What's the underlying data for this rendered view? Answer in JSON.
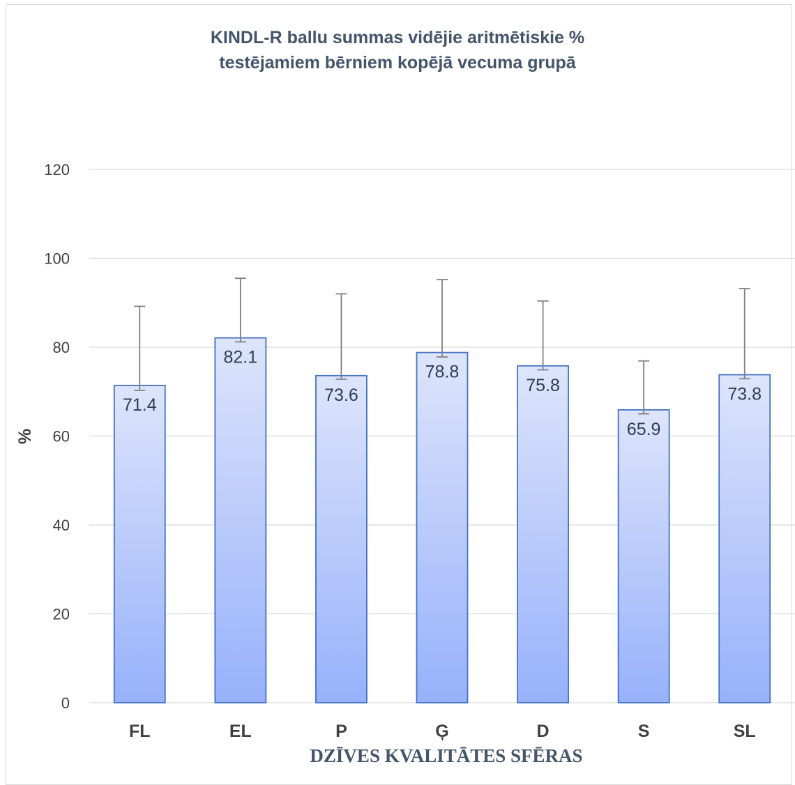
{
  "chart_data": {
    "type": "bar",
    "title_lines": [
      "KINDL-R ballu summas vidējie aritmētiskie %",
      "testējamiem bērniem kopējā vecuma grupā"
    ],
    "xlabel": "DZĪVES KVALITĀTES SFĒRAS",
    "ylabel": "%",
    "categories": [
      "FL",
      "EL",
      "P",
      "Ģ",
      "D",
      "S",
      "SL"
    ],
    "values": [
      71.4,
      82.1,
      73.6,
      78.8,
      75.8,
      65.9,
      73.8
    ],
    "error_lower": [
      70.3,
      81.2,
      72.8,
      77.8,
      74.9,
      65.0,
      72.9
    ],
    "error_upper": [
      89.2,
      95.5,
      92.0,
      95.2,
      90.4,
      76.9,
      93.2
    ],
    "ylim": [
      0,
      120
    ],
    "yticks": [
      "0",
      "20",
      "40",
      "60",
      "80",
      "100",
      "120"
    ],
    "grid": true,
    "legend": "none",
    "colors": {
      "bar_top": "#dde5fb",
      "bar_bottom": "#97b1fb",
      "bar_border": "#4472c4",
      "grid": "#d9d9d9",
      "error_bar": "#808080"
    }
  }
}
